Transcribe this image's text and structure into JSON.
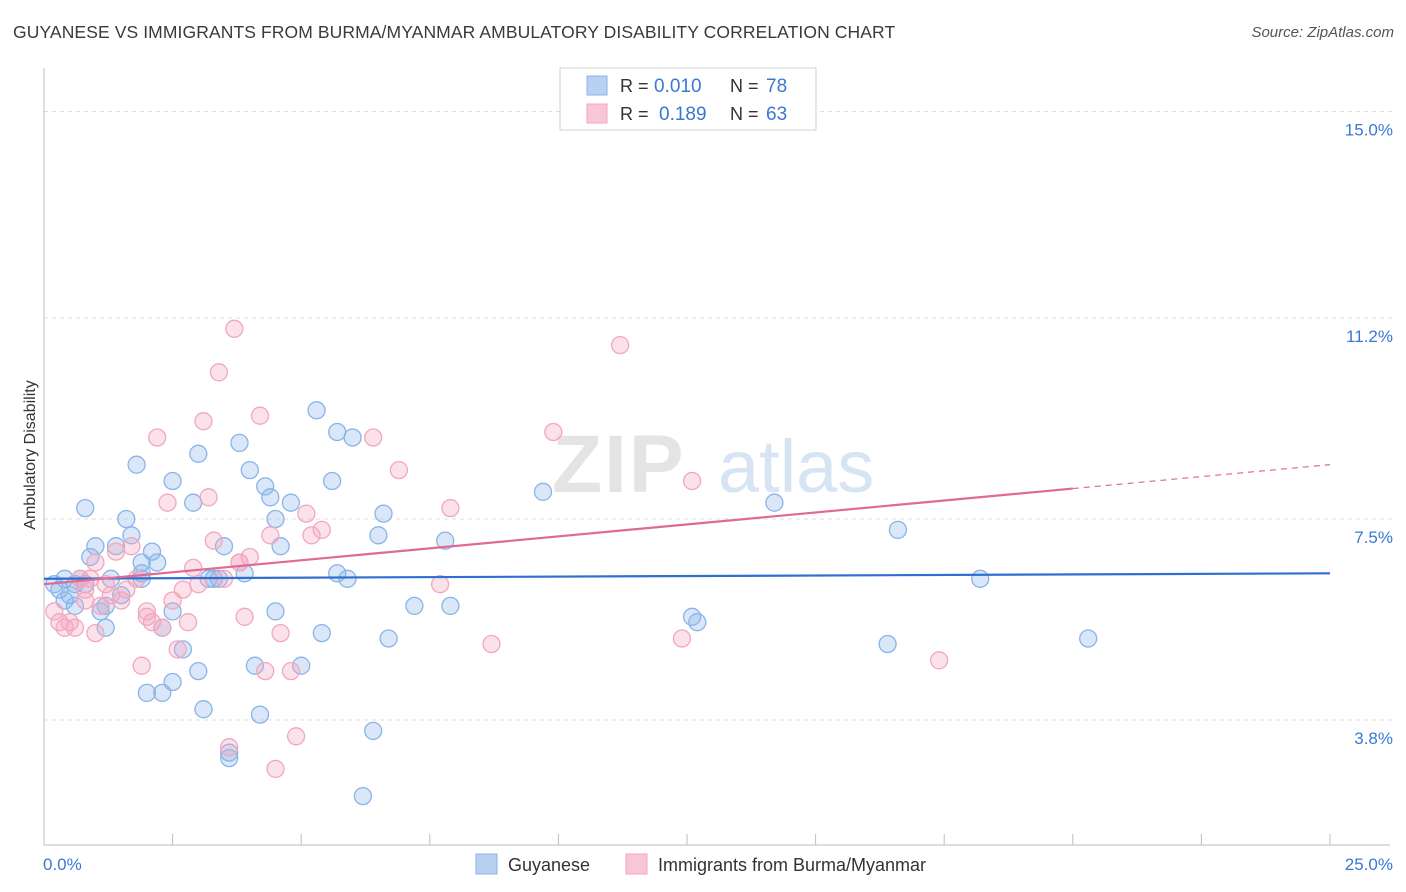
{
  "title": "GUYANESE VS IMMIGRANTS FROM BURMA/MYANMAR AMBULATORY DISABILITY CORRELATION CHART",
  "source": "Source: ZipAtlas.com",
  "watermark": {
    "part1": "ZIP",
    "part2": "atlas"
  },
  "legend_top": {
    "rows": [
      {
        "r_label": "R =",
        "r_value": "0.010",
        "n_label": "N =",
        "n_value": "78"
      },
      {
        "r_label": "R =",
        "r_value": "0.189",
        "n_label": "N =",
        "n_value": "63"
      }
    ]
  },
  "chart_data": {
    "type": "scatter",
    "title": "GUYANESE VS IMMIGRANTS FROM BURMA/MYANMAR AMBULATORY DISABILITY CORRELATION CHART",
    "xlabel": "",
    "ylabel": "Ambulatory Disability",
    "xlim": [
      0,
      25
    ],
    "ylim": [
      1.5,
      15.8
    ],
    "x_tick_labels": [
      "0.0%",
      "25.0%"
    ],
    "y_ticks": [
      3.8,
      7.5,
      11.2,
      15.0
    ],
    "y_tick_labels": [
      "3.8%",
      "7.5%",
      "11.2%",
      "15.0%"
    ],
    "grid": true,
    "legend": "bottom-center",
    "series": [
      {
        "name": "Guyanese",
        "color": "#8ab4e8",
        "line_color": "#2e6fd0",
        "r": "0.010",
        "n": "78",
        "trend": {
          "x0": 0,
          "y0": 6.4,
          "x1": 25,
          "y1": 6.5,
          "dash_from": null
        },
        "points": [
          [
            0.2,
            6.3
          ],
          [
            0.3,
            6.2
          ],
          [
            0.4,
            6.0
          ],
          [
            0.5,
            6.1
          ],
          [
            0.6,
            5.9
          ],
          [
            0.6,
            6.3
          ],
          [
            0.7,
            6.4
          ],
          [
            0.8,
            6.3
          ],
          [
            0.8,
            7.7
          ],
          [
            0.9,
            6.8
          ],
          [
            1.0,
            7.0
          ],
          [
            1.1,
            5.8
          ],
          [
            1.2,
            5.9
          ],
          [
            1.2,
            5.5
          ],
          [
            1.3,
            6.4
          ],
          [
            1.4,
            7.0
          ],
          [
            1.5,
            6.1
          ],
          [
            1.6,
            7.5
          ],
          [
            1.7,
            7.2
          ],
          [
            1.8,
            8.5
          ],
          [
            1.9,
            6.5
          ],
          [
            1.9,
            6.7
          ],
          [
            2.0,
            4.3
          ],
          [
            2.1,
            6.9
          ],
          [
            2.2,
            6.7
          ],
          [
            2.3,
            5.5
          ],
          [
            2.3,
            4.3
          ],
          [
            2.5,
            4.5
          ],
          [
            2.5,
            8.2
          ],
          [
            2.5,
            5.8
          ],
          [
            2.7,
            5.1
          ],
          [
            2.9,
            7.8
          ],
          [
            3.0,
            8.7
          ],
          [
            3.0,
            4.7
          ],
          [
            3.1,
            4.0
          ],
          [
            3.2,
            6.4
          ],
          [
            3.3,
            6.4
          ],
          [
            3.4,
            6.4
          ],
          [
            3.5,
            7.0
          ],
          [
            3.6,
            3.2
          ],
          [
            3.6,
            3.1
          ],
          [
            3.8,
            8.9
          ],
          [
            3.9,
            6.5
          ],
          [
            4.0,
            8.4
          ],
          [
            4.1,
            4.8
          ],
          [
            4.2,
            3.9
          ],
          [
            4.3,
            8.1
          ],
          [
            4.4,
            7.9
          ],
          [
            4.5,
            7.5
          ],
          [
            4.5,
            5.8
          ],
          [
            4.6,
            7.0
          ],
          [
            4.8,
            7.8
          ],
          [
            5.0,
            4.8
          ],
          [
            5.3,
            9.5
          ],
          [
            5.4,
            5.4
          ],
          [
            5.6,
            8.2
          ],
          [
            5.7,
            9.1
          ],
          [
            5.9,
            6.4
          ],
          [
            6.0,
            9.0
          ],
          [
            6.2,
            2.4
          ],
          [
            6.4,
            3.6
          ],
          [
            6.5,
            7.2
          ],
          [
            6.6,
            7.6
          ],
          [
            6.7,
            5.3
          ],
          [
            7.2,
            5.9
          ],
          [
            7.8,
            7.1
          ],
          [
            7.9,
            5.9
          ],
          [
            9.7,
            8.0
          ],
          [
            12.6,
            5.7
          ],
          [
            12.7,
            5.6
          ],
          [
            14.2,
            7.8
          ],
          [
            16.4,
            5.2
          ],
          [
            16.6,
            7.3
          ],
          [
            18.2,
            6.4
          ],
          [
            20.3,
            5.3
          ],
          [
            5.7,
            6.5
          ],
          [
            1.9,
            6.4
          ],
          [
            0.4,
            6.4
          ]
        ]
      },
      {
        "name": "Immigrants from Burma/Myanmar",
        "color": "#f4a6bf",
        "line_color": "#e06a94",
        "r": "0.189",
        "n": "63",
        "trend": {
          "x0": 0,
          "y0": 6.3,
          "x1": 25,
          "y1": 8.5,
          "dash_from": 20.0
        },
        "points": [
          [
            0.2,
            5.8
          ],
          [
            0.3,
            5.6
          ],
          [
            0.4,
            5.5
          ],
          [
            0.5,
            5.6
          ],
          [
            0.6,
            5.5
          ],
          [
            0.7,
            6.4
          ],
          [
            0.8,
            6.2
          ],
          [
            0.9,
            6.4
          ],
          [
            1.0,
            6.7
          ],
          [
            1.1,
            5.9
          ],
          [
            1.2,
            6.3
          ],
          [
            1.3,
            6.1
          ],
          [
            1.4,
            6.9
          ],
          [
            1.5,
            6.0
          ],
          [
            1.6,
            6.2
          ],
          [
            1.7,
            7.0
          ],
          [
            1.8,
            6.4
          ],
          [
            1.9,
            4.8
          ],
          [
            2.0,
            5.8
          ],
          [
            2.1,
            5.6
          ],
          [
            2.2,
            9.0
          ],
          [
            2.3,
            5.5
          ],
          [
            2.4,
            7.8
          ],
          [
            2.5,
            6.0
          ],
          [
            2.6,
            5.1
          ],
          [
            2.7,
            6.2
          ],
          [
            2.8,
            5.6
          ],
          [
            2.9,
            6.6
          ],
          [
            3.0,
            6.3
          ],
          [
            3.1,
            9.3
          ],
          [
            3.2,
            7.9
          ],
          [
            3.3,
            7.1
          ],
          [
            3.4,
            10.2
          ],
          [
            3.5,
            6.4
          ],
          [
            3.6,
            3.3
          ],
          [
            3.7,
            11.0
          ],
          [
            3.8,
            6.7
          ],
          [
            3.9,
            5.7
          ],
          [
            4.0,
            6.8
          ],
          [
            4.2,
            9.4
          ],
          [
            4.3,
            4.7
          ],
          [
            4.4,
            7.2
          ],
          [
            4.5,
            2.9
          ],
          [
            4.6,
            5.4
          ],
          [
            4.8,
            4.7
          ],
          [
            4.9,
            3.5
          ],
          [
            5.1,
            7.6
          ],
          [
            5.2,
            7.2
          ],
          [
            5.4,
            7.3
          ],
          [
            6.4,
            9.0
          ],
          [
            6.9,
            8.4
          ],
          [
            7.7,
            6.3
          ],
          [
            7.9,
            7.7
          ],
          [
            8.7,
            5.2
          ],
          [
            9.9,
            9.1
          ],
          [
            11.2,
            10.7
          ],
          [
            12.4,
            5.3
          ],
          [
            12.6,
            8.2
          ],
          [
            17.4,
            4.9
          ],
          [
            3.8,
            6.7
          ],
          [
            2.0,
            5.7
          ],
          [
            1.0,
            5.4
          ],
          [
            0.8,
            6.0
          ]
        ]
      }
    ]
  }
}
